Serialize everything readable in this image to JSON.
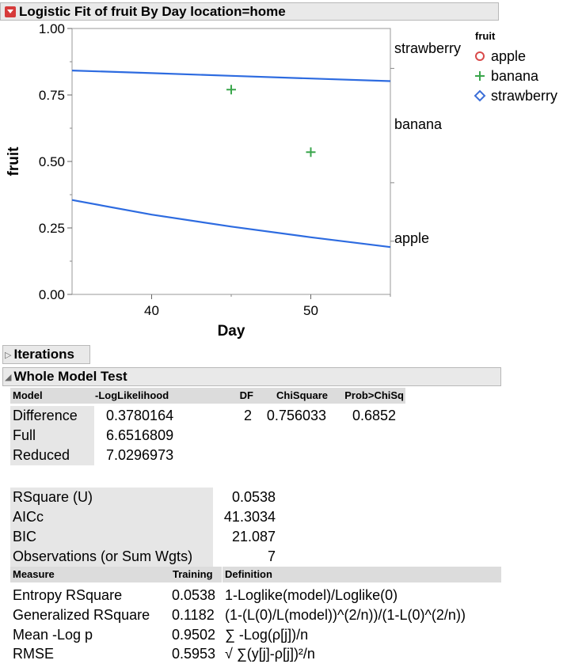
{
  "report": {
    "title": "Logistic Fit of fruit By Day location=home",
    "iterations_label": "Iterations",
    "whole_model_label": "Whole Model Test"
  },
  "chart_data": {
    "type": "line",
    "title": "",
    "xlabel": "Day",
    "ylabel": "fruit",
    "xlim": [
      35,
      55
    ],
    "ylim": [
      0,
      1
    ],
    "x_ticks": [
      "40",
      "50"
    ],
    "y_ticks": [
      "0.00",
      "0.25",
      "0.50",
      "0.75",
      "1.00"
    ],
    "grid": false,
    "curves": [
      {
        "name": "apple",
        "x": [
          35,
          40,
          45,
          50,
          55
        ],
        "y": [
          0.355,
          0.3,
          0.255,
          0.215,
          0.178
        ]
      },
      {
        "name": "banana",
        "x": [
          35,
          40,
          45,
          50,
          55
        ],
        "y": [
          0.842,
          0.832,
          0.822,
          0.812,
          0.802
        ]
      }
    ],
    "points": [
      {
        "series": "banana",
        "x": 45,
        "y": 0.77
      },
      {
        "series": "banana",
        "x": 50,
        "y": 0.535
      }
    ],
    "right_labels": [
      "strawberry",
      "banana",
      "apple"
    ],
    "legend": {
      "title": "fruit",
      "placement": "right",
      "entries": [
        {
          "label": "apple",
          "marker": "circle",
          "color": "#d94a4a"
        },
        {
          "label": "banana",
          "marker": "plus",
          "color": "#3aa64c"
        },
        {
          "label": "strawberry",
          "marker": "diamond",
          "color": "#3c6fd8"
        }
      ]
    },
    "curve_color": "#2d6be0"
  },
  "whole_model_test": {
    "columns": [
      "Model",
      "-LogLikelihood",
      "DF",
      "ChiSquare",
      "Prob>ChiSq"
    ],
    "rows": [
      [
        "Difference",
        "0.3780164",
        "2",
        "0.756033",
        "0.6852"
      ],
      [
        "Full",
        "6.6516809",
        "",
        "",
        ""
      ],
      [
        "Reduced",
        "7.0296973",
        "",
        "",
        ""
      ]
    ]
  },
  "fit_stats": [
    [
      "RSquare (U)",
      "0.0538"
    ],
    [
      "AICc",
      "41.3034"
    ],
    [
      "BIC",
      "21.087"
    ],
    [
      "Observations (or Sum Wgts)",
      "7"
    ]
  ],
  "measures": {
    "columns": [
      "Measure",
      "Training",
      "Definition"
    ],
    "rows": [
      [
        "Entropy RSquare",
        "0.0538",
        "1-Loglike(model)/Loglike(0)"
      ],
      [
        "Generalized RSquare",
        "0.1182",
        "(1-(L(0)/L(model))^(2/n))/(1-L(0)^(2/n))"
      ],
      [
        "Mean -Log p",
        "0.9502",
        "∑ -Log(ρ[j])/n"
      ],
      [
        "RMSE",
        "0.5953",
        "√ ∑(y[j]-ρ[j])²/n"
      ]
    ]
  }
}
